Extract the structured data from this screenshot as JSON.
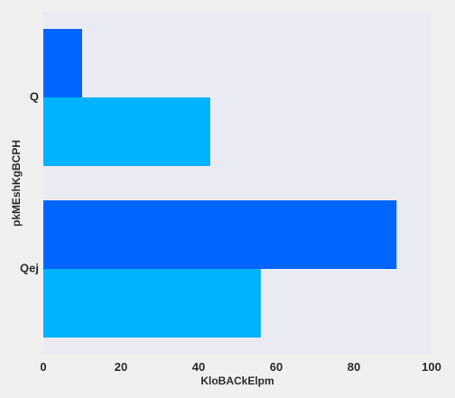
{
  "chart_data": {
    "type": "bar",
    "orientation": "horizontal",
    "categories": [
      "Q",
      "Qej"
    ],
    "series": [
      {
        "values": [
          10,
          91
        ],
        "color": "#0066ff"
      },
      {
        "values": [
          43,
          56
        ],
        "color": "#00b3ff"
      }
    ],
    "xlabel": "KloBACkElpm",
    "ylabel": "pkMEshKgBCPH",
    "xlim": [
      0,
      100
    ],
    "xticks": [
      0,
      20,
      40,
      60,
      80,
      100
    ],
    "category_label_sizes": [
      12,
      8
    ],
    "grid": false,
    "background_color": "#eaeaf2",
    "legend": "none"
  }
}
